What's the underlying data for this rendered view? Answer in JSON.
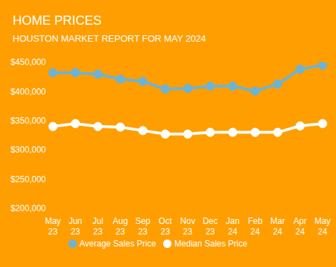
{
  "chart_data": {
    "type": "line",
    "title": "HOME PRICES",
    "subtitle": "HOUSTON MARKET REPORT FOR MAY 2024",
    "categories": [
      "May 23",
      "Jun 23",
      "Jul 23",
      "Aug 23",
      "Sep 23",
      "Oct 23",
      "Nov 23",
      "Dec 23",
      "Jan 24",
      "Feb 24",
      "Mar 24",
      "Apr 24",
      "May 24"
    ],
    "series": [
      {
        "name": "Average Sales Price",
        "color": "#6cb4d6",
        "values": [
          432000,
          432000,
          429500,
          421000,
          417000,
          404000,
          405000,
          409000,
          409000,
          400500,
          412500,
          438000,
          445000
        ]
      },
      {
        "name": "Median Sales Price",
        "color": "#ffffff",
        "values": [
          340000,
          345000,
          340000,
          339000,
          333000,
          327000,
          327000,
          330000,
          330000,
          330000,
          330000,
          341000,
          345000
        ]
      }
    ],
    "ylim": [
      200000,
      450000
    ],
    "yticks": [
      {
        "value": 200000,
        "label": "$200,000"
      },
      {
        "value": 250000,
        "label": "$250,000"
      },
      {
        "value": 300000,
        "label": "$300,000"
      },
      {
        "value": 350000,
        "label": "$350,000"
      },
      {
        "value": 400000,
        "label": "$400,000"
      },
      {
        "value": 450000,
        "label": "$450,000"
      }
    ],
    "grid": false,
    "legend": "bottom",
    "marker": "circle"
  }
}
